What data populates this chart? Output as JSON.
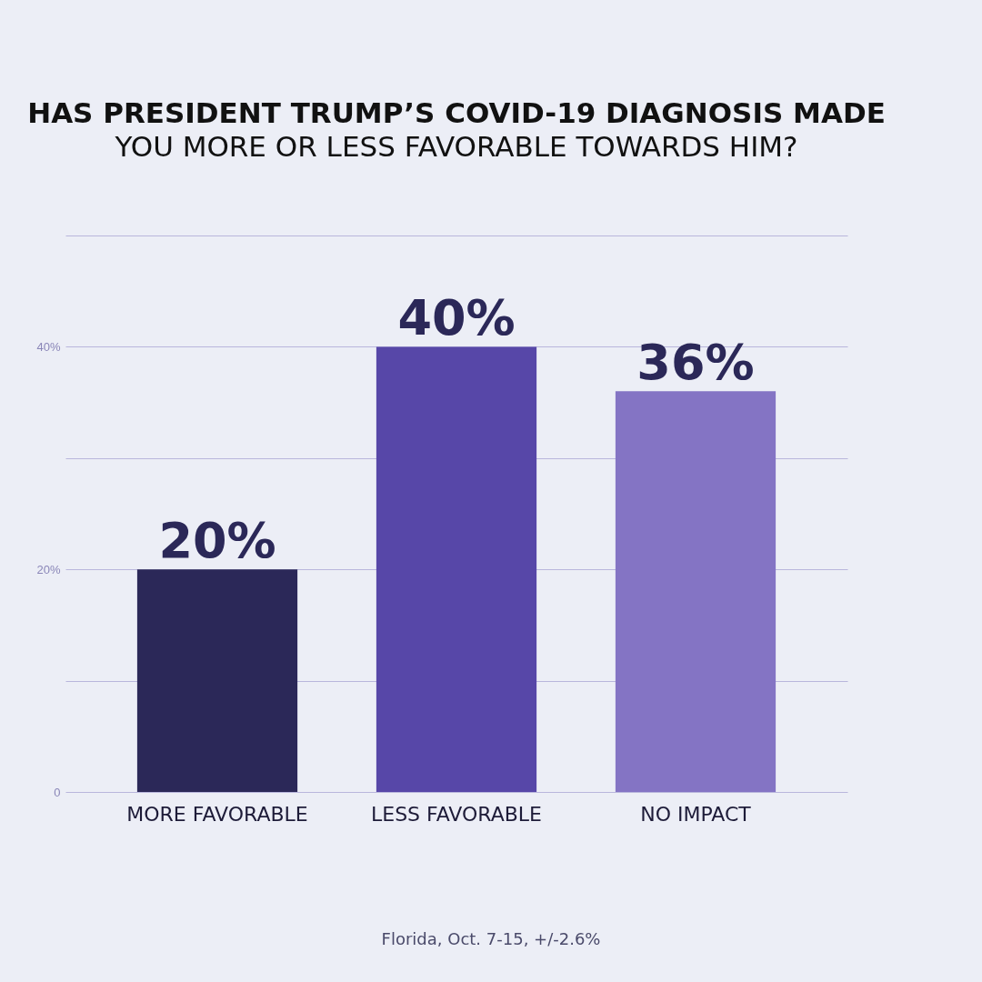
{
  "chart_data": {
    "type": "bar",
    "title": "HAS PRESIDENT TRUMP’S COVID-19 DIAGNOSIS MADE",
    "subtitle": "YOU MORE OR LESS FAVORABLE TOWARDS HIM?",
    "categories": [
      "MORE FAVORABLE",
      "LESS FAVORABLE",
      "NO IMPACT"
    ],
    "values": [
      20,
      40,
      36
    ],
    "colors": [
      "#2b2858",
      "#5747a8",
      "#8474c4"
    ],
    "value_labels": [
      "20%",
      "40%",
      "36%"
    ],
    "ylim": [
      0,
      50
    ],
    "yticks": [
      0,
      {
        "value": 10,
        "label": null
      },
      {
        "value": 20,
        "label": "20%"
      },
      {
        "value": 30,
        "label": null
      },
      {
        "value": 40,
        "label": "40%"
      },
      {
        "value": 50,
        "label": null
      }
    ],
    "grid": "y",
    "annotations": [
      "Florida, Oct. 7-15, +/-2.6%"
    ]
  }
}
